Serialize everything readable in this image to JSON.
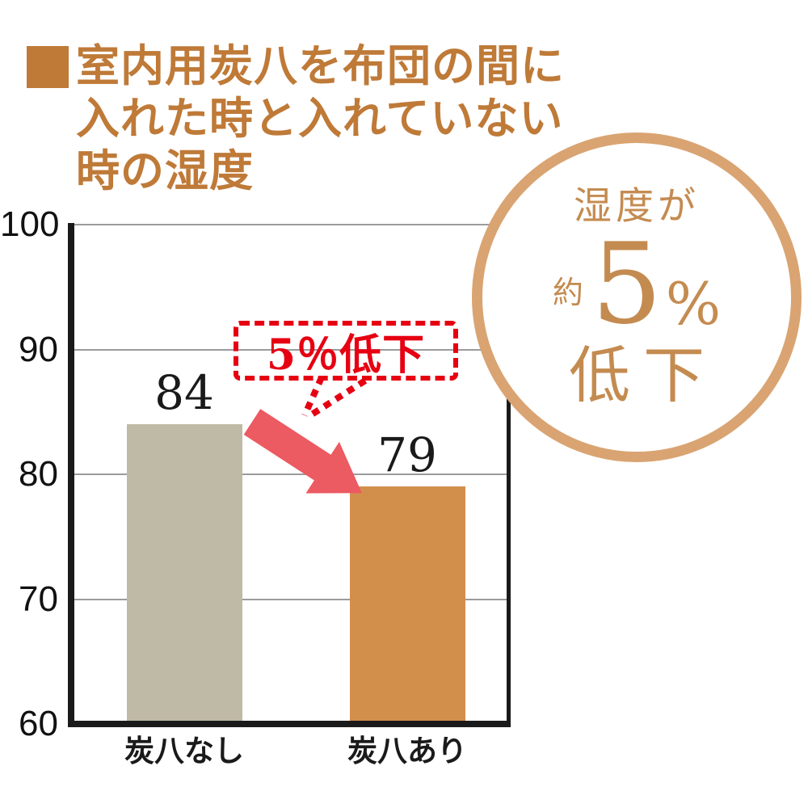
{
  "title": {
    "lines": [
      "室内用炭八を布団の間に",
      "入れた時と入れていない",
      "時の湿度"
    ],
    "color": "#BF7A38"
  },
  "chart_data": {
    "type": "bar",
    "title": "室内用炭八を布団の間に入れた時と入れていない時の湿度",
    "categories": [
      "炭八なし",
      "炭八あり"
    ],
    "values": [
      84,
      79
    ],
    "unit": "%（湿度）",
    "ylim": [
      60,
      100
    ],
    "yticks": [
      100,
      90,
      80,
      70,
      60
    ],
    "grid": true,
    "legend_position": "none",
    "bar_colors": [
      "#BFBAA5",
      "#D28F4B"
    ],
    "value_labels": [
      "84",
      "79"
    ]
  },
  "annotation": {
    "callout_text": "5％低下",
    "callout_color": "#E60012",
    "arrow_color": "#EC5A62",
    "arrow_meaning": "84から79への低下を指す矢印"
  },
  "badge": {
    "line1": "湿度が",
    "approx": "約",
    "big_number": "5",
    "percent": "%",
    "line3": "低下",
    "ring_color": "#D9A472",
    "text_color": "#C48B50"
  }
}
